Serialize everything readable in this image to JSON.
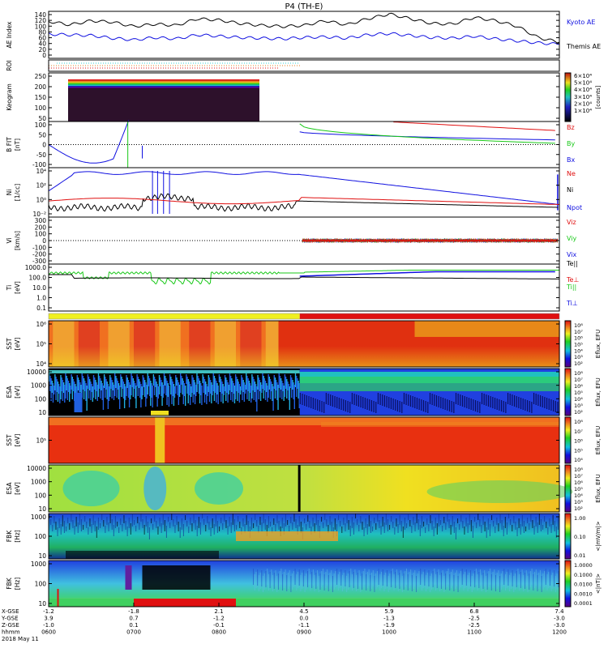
{
  "title": "P4 (TH-E)",
  "date_label": "2018 May 11",
  "colors": {
    "red": "#e01010",
    "green": "#18c818",
    "blue": "#1010e0",
    "black": "#000000",
    "frame": "#000000",
    "cyan": "#30d0d0",
    "orange": "#e08020"
  },
  "x_axis": {
    "ticks": [
      "0600",
      "0700",
      "0800",
      "0900",
      "1000",
      "1100",
      "1200"
    ],
    "rows": [
      {
        "label": "X-GSE",
        "values": [
          "-1.2",
          "-1.8",
          "2.1",
          "4.5",
          "5.9",
          "6.8",
          "7.4"
        ]
      },
      {
        "label": "Y-GSE",
        "values": [
          "3.9",
          "0.7",
          "-1.2",
          "0.0",
          "-1.3",
          "-2.5",
          "-3.0"
        ]
      },
      {
        "label": "Z-GSE",
        "values": [
          "-1.0",
          "0.1",
          "-0.1",
          "-1.1",
          "-1.9",
          "-2.5",
          "-3.0"
        ]
      },
      {
        "label": "hhmm",
        "values": [
          "0600",
          "0700",
          "0800",
          "0900",
          "1000",
          "1100",
          "1200"
        ]
      }
    ]
  },
  "chart_data": [
    {
      "type": "line",
      "id": "ae",
      "ylabel": "AE Index",
      "yticks": [
        "140",
        "120",
        "100",
        "80",
        "60",
        "40",
        "20",
        "0"
      ],
      "ylim": [
        0,
        140
      ],
      "x_hours": [
        6,
        6.25,
        6.5,
        6.75,
        7,
        7.25,
        7.5,
        7.75,
        8,
        8.25,
        8.5,
        8.75,
        9,
        9.25,
        9.5,
        9.75,
        10,
        10.25,
        10.5,
        10.75,
        11,
        11.25,
        11.5,
        11.75,
        12
      ],
      "series": [
        {
          "name": "Kyoto AE",
          "color": "#1010e0",
          "values": [
            72,
            70,
            68,
            60,
            55,
            62,
            58,
            70,
            66,
            62,
            60,
            58,
            62,
            64,
            60,
            70,
            74,
            68,
            62,
            60,
            66,
            58,
            52,
            46,
            42
          ]
        },
        {
          "name": "Themis AE",
          "color": "#000000",
          "values": [
            110,
            100,
            112,
            108,
            95,
            102,
            98,
            118,
            114,
            104,
            98,
            95,
            98,
            112,
            100,
            118,
            132,
            118,
            104,
            102,
            122,
            112,
            96,
            62,
            48
          ]
        }
      ]
    },
    {
      "type": "raster",
      "id": "roi",
      "ylabel": "ROI"
    },
    {
      "type": "heatmap",
      "id": "keogram",
      "ylabel": "Keogram",
      "yticks": [
        "250",
        "200",
        "150",
        "100",
        "50"
      ],
      "colorbar": {
        "ticks": [
          "6×10⁴",
          "5×10⁴",
          "4×10⁴",
          "3×10⁴",
          "2×10⁴",
          "1×10⁴"
        ],
        "label": "[counts]"
      }
    },
    {
      "type": "line",
      "id": "bfit",
      "ylabel": "B FIT",
      "unit": "[nT]",
      "yticks": [
        "100",
        "50",
        "0",
        "-50",
        "-100"
      ],
      "ylim": [
        -100,
        100
      ],
      "series": [
        {
          "name": "Bz",
          "color": "#e01010"
        },
        {
          "name": "By",
          "color": "#18c818"
        },
        {
          "name": "Bx",
          "color": "#1010e0"
        }
      ]
    },
    {
      "type": "line",
      "id": "density",
      "ylabel": "Ni",
      "unit": "[1/cc]",
      "yticks": [
        "10⁴",
        "10²",
        "10⁰",
        "10⁻²"
      ],
      "series": [
        {
          "name": "Ne",
          "color": "#e01010"
        },
        {
          "name": "Ni",
          "color": "#000000"
        },
        {
          "name": "Npot",
          "color": "#1010e0"
        }
      ]
    },
    {
      "type": "line",
      "id": "velocity",
      "ylabel": "Vi",
      "unit": "[km/s]",
      "yticks": [
        "300",
        "200",
        "100",
        "0",
        "-100",
        "-200",
        "-300"
      ],
      "ylim": [
        -300,
        300
      ],
      "series": [
        {
          "name": "Viz",
          "color": "#e01010"
        },
        {
          "name": "Viy",
          "color": "#18c818"
        },
        {
          "name": "Vix",
          "color": "#1010e0"
        }
      ]
    },
    {
      "type": "line",
      "id": "temp",
      "ylabel": "Ti",
      "unit": "[eV]",
      "yticks": [
        "1000.0",
        "100.0",
        "10.0",
        "1.0",
        "0.1"
      ],
      "series": [
        {
          "name": "Te||",
          "color": "#000000"
        },
        {
          "name": "Te⊥",
          "color": "#e01010"
        },
        {
          "name": "Ti||",
          "color": "#18c818"
        },
        {
          "name": "Ti⊥",
          "color": "#1010e0"
        }
      ]
    },
    {
      "type": "heatmap",
      "id": "sst_i",
      "ylabel": "SST",
      "unit": "[eV]",
      "yticks": [
        "10⁶",
        "10⁵",
        "10⁴"
      ],
      "colorbar": {
        "ticks": [
          "10⁸",
          "10⁷",
          "10⁶",
          "10⁵",
          "10⁴",
          "10³",
          "10²"
        ],
        "label": "Eflux, EFU"
      }
    },
    {
      "type": "heatmap",
      "id": "esa_i",
      "ylabel": "ESA",
      "unit": "[eV]",
      "yticks": [
        "10000",
        "1000",
        "100",
        "10"
      ],
      "colorbar": {
        "ticks": [
          "10⁸",
          "10⁷",
          "10⁶",
          "10⁵",
          "10⁴",
          "10³",
          "10²"
        ],
        "label": "Eflux, EFU"
      }
    },
    {
      "type": "heatmap",
      "id": "sst_e",
      "ylabel": "SST",
      "unit": "[eV]",
      "yticks": [
        "10⁵"
      ],
      "colorbar": {
        "ticks": [
          "10⁸",
          "10⁷",
          "10⁶",
          "10⁵",
          "10⁴"
        ],
        "label": "Eflux, EFU"
      }
    },
    {
      "type": "heatmap",
      "id": "esa_e",
      "ylabel": "ESA",
      "unit": "[eV]",
      "yticks": [
        "10000",
        "1000",
        "100",
        "10"
      ],
      "colorbar": {
        "ticks": [
          "10⁸",
          "10⁷",
          "10⁶",
          "10⁵",
          "10⁴",
          "10³",
          "10²"
        ],
        "label": "Eflux, EFU"
      }
    },
    {
      "type": "heatmap",
      "id": "fbk1",
      "ylabel": "FBK",
      "unit": "[Hz]",
      "yticks": [
        "1000",
        "100",
        "10"
      ],
      "colorbar": {
        "ticks": [
          "1.00",
          "0.10",
          "0.01"
        ],
        "label": "<|mV/m|>"
      }
    },
    {
      "type": "heatmap",
      "id": "fbk2",
      "ylabel": "FBK",
      "unit": "[Hz]",
      "yticks": [
        "1000",
        "100",
        "10"
      ],
      "colorbar": {
        "ticks": [
          "1.0000",
          "0.1000",
          "0.0100",
          "0.0010",
          "0.0001"
        ],
        "label": "<|nT|>"
      }
    }
  ]
}
